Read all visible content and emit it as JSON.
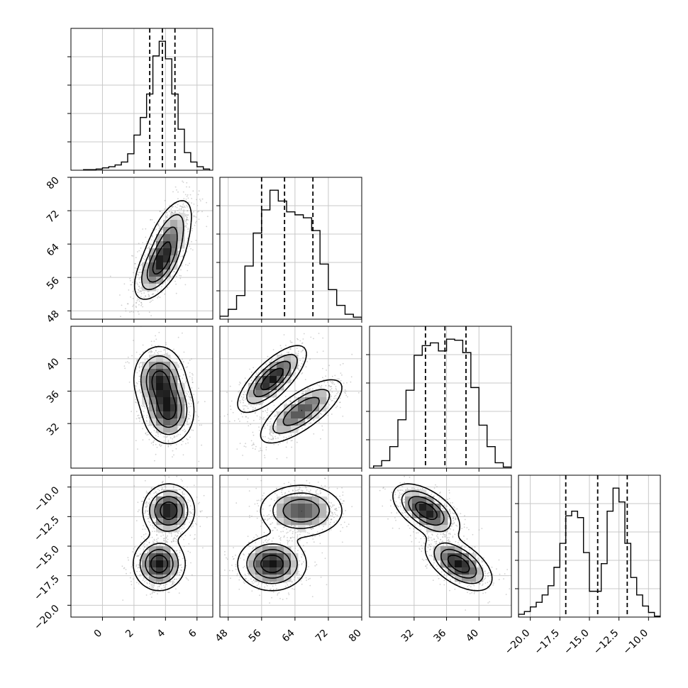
{
  "chart_data": {
    "type": "corner",
    "params": [
      {
        "range": [
          -2,
          7
        ],
        "ticks": [
          0,
          2,
          4,
          6
        ],
        "tick_labels": [
          "0",
          "2",
          "4",
          "6"
        ],
        "quantiles": [
          3.0,
          3.8,
          4.6
        ],
        "hist": {
          "edges": [
            -1.2,
            -0.8,
            -0.4,
            0,
            0.4,
            0.8,
            1.2,
            1.6,
            2.0,
            2.4,
            2.8,
            3.2,
            3.6,
            4.0,
            4.4,
            4.8,
            5.2,
            5.6,
            6.0,
            6.4,
            6.8
          ],
          "counts": [
            1,
            1,
            2,
            4,
            6,
            9,
            14,
            28,
            60,
            90,
            130,
            195,
            220,
            190,
            130,
            70,
            30,
            14,
            6,
            2
          ]
        }
      },
      {
        "range": [
          46,
          80
        ],
        "ticks": [
          48,
          56,
          64,
          72,
          80
        ],
        "tick_labels": [
          "48",
          "56",
          "64",
          "72",
          "80"
        ],
        "quantiles": [
          56,
          61.5,
          68.3
        ],
        "hist": {
          "edges": [
            46,
            48,
            50,
            52,
            54,
            56,
            58,
            60,
            62,
            64,
            66,
            68,
            70,
            72,
            74,
            76,
            78,
            80
          ],
          "counts": [
            6,
            20,
            48,
            108,
            175,
            222,
            262,
            240,
            218,
            212,
            206,
            180,
            112,
            60,
            28,
            10,
            4
          ]
        }
      },
      {
        "range": [
          26.5,
          44
        ],
        "ticks": [
          32,
          36,
          40
        ],
        "tick_labels": [
          "32",
          "36",
          "40"
        ],
        "quantiles": [
          33.4,
          35.8,
          38.4
        ],
        "hist": {
          "edges": [
            27,
            28,
            29,
            30,
            31,
            32,
            33,
            34,
            35,
            36,
            37,
            38,
            39,
            40,
            41,
            42,
            43,
            44
          ],
          "counts": [
            4,
            14,
            40,
            90,
            145,
            210,
            228,
            233,
            218,
            240,
            238,
            215,
            150,
            80,
            40,
            10,
            2
          ]
        }
      },
      {
        "range": [
          -21,
          -9
        ],
        "ticks": [
          -20,
          -17.5,
          -15,
          -12.5,
          -10
        ],
        "tick_labels": [
          "−20.0",
          "−17.5",
          "−15.0",
          "−12.5",
          "−10.0"
        ],
        "quantiles": [
          -17.0,
          -14.3,
          -11.8
        ],
        "hist": {
          "edges": [
            -21.0,
            -20.5,
            -20.0,
            -19.5,
            -19.0,
            -18.5,
            -18.0,
            -17.5,
            -17.0,
            -16.5,
            -16.0,
            -15.5,
            -15.0,
            -14.5,
            -14.0,
            -13.5,
            -13.0,
            -12.5,
            -12.0,
            -11.5,
            -11.0,
            -10.5,
            -10.0,
            -9.5,
            -9.0
          ],
          "counts": [
            0.3,
            0.6,
            1.1,
            1.6,
            2.4,
            3.4,
            5.4,
            8.0,
            11.0,
            11.5,
            10.8,
            7.0,
            2.8,
            2.8,
            5.8,
            11.5,
            14.0,
            12.5,
            8.0,
            4.3,
            2.4,
            1.2,
            0.5,
            0.1
          ]
        }
      }
    ],
    "mixture": [
      {
        "w": 0.5,
        "mean": [
          3.6,
          58.5,
          37.5,
          -16.5
        ],
        "sd": [
          0.8,
          4.0,
          2.0,
          1.1
        ]
      },
      {
        "w": 0.5,
        "mean": [
          4.2,
          65.5,
          33.5,
          -12.0
        ],
        "sd": [
          0.8,
          5.0,
          2.0,
          1.1
        ]
      }
    ],
    "pair_correlation": {
      "0-1": 0.6,
      "0-2": 0.0,
      "0-3": 0.0,
      "1-2": 0.75,
      "1-3": 0.0,
      "2-3": -0.55
    }
  }
}
